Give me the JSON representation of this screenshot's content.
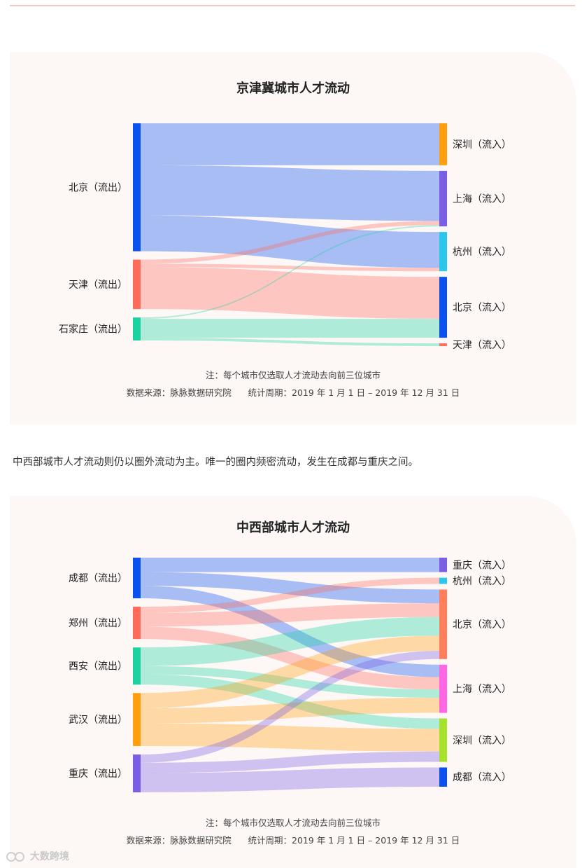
{
  "paragraph": "中西部城市人才流动则仍以圈外流动为主。唯一的圈内频密流动，发生在成都与重庆之间。",
  "watermark": "大数跨境",
  "chart_data": [
    {
      "type": "sankey",
      "title": "京津冀城市人才流动",
      "note_line1": "注：每个城市仅选取人才流动去向前三位城市",
      "note_line2": "数据来源：脉脉数据研究院      统计周期：2019 年 1 月 1 日 – 2019 年 12 月 31 日",
      "sources": [
        {
          "name": "北京（流出）",
          "color": "#0a51f0"
        },
        {
          "name": "天津（流出）",
          "color": "#fe6b5b"
        },
        {
          "name": "石家庄（流出）",
          "color": "#1bd3a2"
        }
      ],
      "targets": [
        {
          "name": "深圳（流入）",
          "color": "#ff9f0d"
        },
        {
          "name": "上海（流入）",
          "color": "#7b5ee6"
        },
        {
          "name": "杭州（流入）",
          "color": "#2bc6eb"
        },
        {
          "name": "北京（流入）",
          "color": "#0a51f0"
        },
        {
          "name": "天津（流入）",
          "color": "#fe6b5b"
        }
      ],
      "links": [
        {
          "source": "北京（流出）",
          "target": "深圳（流入）",
          "value": 62
        },
        {
          "source": "北京（流出）",
          "target": "上海（流入）",
          "value": 74
        },
        {
          "source": "北京（流出）",
          "target": "杭州（流入）",
          "value": 53
        },
        {
          "source": "天津（流出）",
          "target": "上海（流入）",
          "value": 6
        },
        {
          "source": "天津（流出）",
          "target": "杭州（流入）",
          "value": 5
        },
        {
          "source": "天津（流出）",
          "target": "北京（流入）",
          "value": 62
        },
        {
          "source": "石家庄（流出）",
          "target": "上海（流入）",
          "value": 2
        },
        {
          "source": "石家庄（流出）",
          "target": "北京（流入）",
          "value": 28
        },
        {
          "source": "石家庄（流出）",
          "target": "天津（流入）",
          "value": 4
        }
      ]
    },
    {
      "type": "sankey",
      "title": "中西部城市人才流动",
      "note_line1": "注：每个城市仅选取人才流动去向前三位城市",
      "note_line2": "数据来源：脉脉数据研究院      统计周期：2019 年 1 月 1 日 – 2019 年 12 月 31 日",
      "sources": [
        {
          "name": "成都（流出）",
          "color": "#0a51f0"
        },
        {
          "name": "郑州（流出）",
          "color": "#fe6b5b"
        },
        {
          "name": "西安（流出）",
          "color": "#1bd3a2"
        },
        {
          "name": "武汉（流出）",
          "color": "#ff9f0d"
        },
        {
          "name": "重庆（流出）",
          "color": "#7b5ee6"
        }
      ],
      "targets": [
        {
          "name": "重庆（流入）",
          "color": "#7b5ee6"
        },
        {
          "name": "杭州（流入）",
          "color": "#2bc6eb"
        },
        {
          "name": "北京（流入）",
          "color": "#ff7f5c"
        },
        {
          "name": "上海（流入）",
          "color": "#ff66e3"
        },
        {
          "name": "深圳（流入）",
          "color": "#a6e22a"
        },
        {
          "name": "成都（流入）",
          "color": "#0a51f0"
        }
      ],
      "links": [
        {
          "source": "成都（流出）",
          "target": "重庆（流入）",
          "value": 21
        },
        {
          "source": "成都（流出）",
          "target": "北京（流入）",
          "value": 20
        },
        {
          "source": "成都（流出）",
          "target": "上海（流入）",
          "value": 18
        },
        {
          "source": "郑州（流出）",
          "target": "杭州（流入）",
          "value": 9
        },
        {
          "source": "郑州（流出）",
          "target": "北京（流入）",
          "value": 20
        },
        {
          "source": "郑州（流出）",
          "target": "上海（流入）",
          "value": 18
        },
        {
          "source": "西安（流出）",
          "target": "北京（流入）",
          "value": 27
        },
        {
          "source": "西安（流出）",
          "target": "上海（流入）",
          "value": 12
        },
        {
          "source": "西安（流出）",
          "target": "深圳（流入）",
          "value": 15
        },
        {
          "source": "武汉（流出）",
          "target": "北京（流入）",
          "value": 22
        },
        {
          "source": "武汉（流出）",
          "target": "上海（流入）",
          "value": 22
        },
        {
          "source": "武汉（流出）",
          "target": "深圳（流入）",
          "value": 33
        },
        {
          "source": "重庆（流出）",
          "target": "北京（流入）",
          "value": 12
        },
        {
          "source": "重庆（流出）",
          "target": "深圳（流入）",
          "value": 15
        },
        {
          "source": "重庆（流出）",
          "target": "成都（流入）",
          "value": 28
        }
      ]
    }
  ]
}
